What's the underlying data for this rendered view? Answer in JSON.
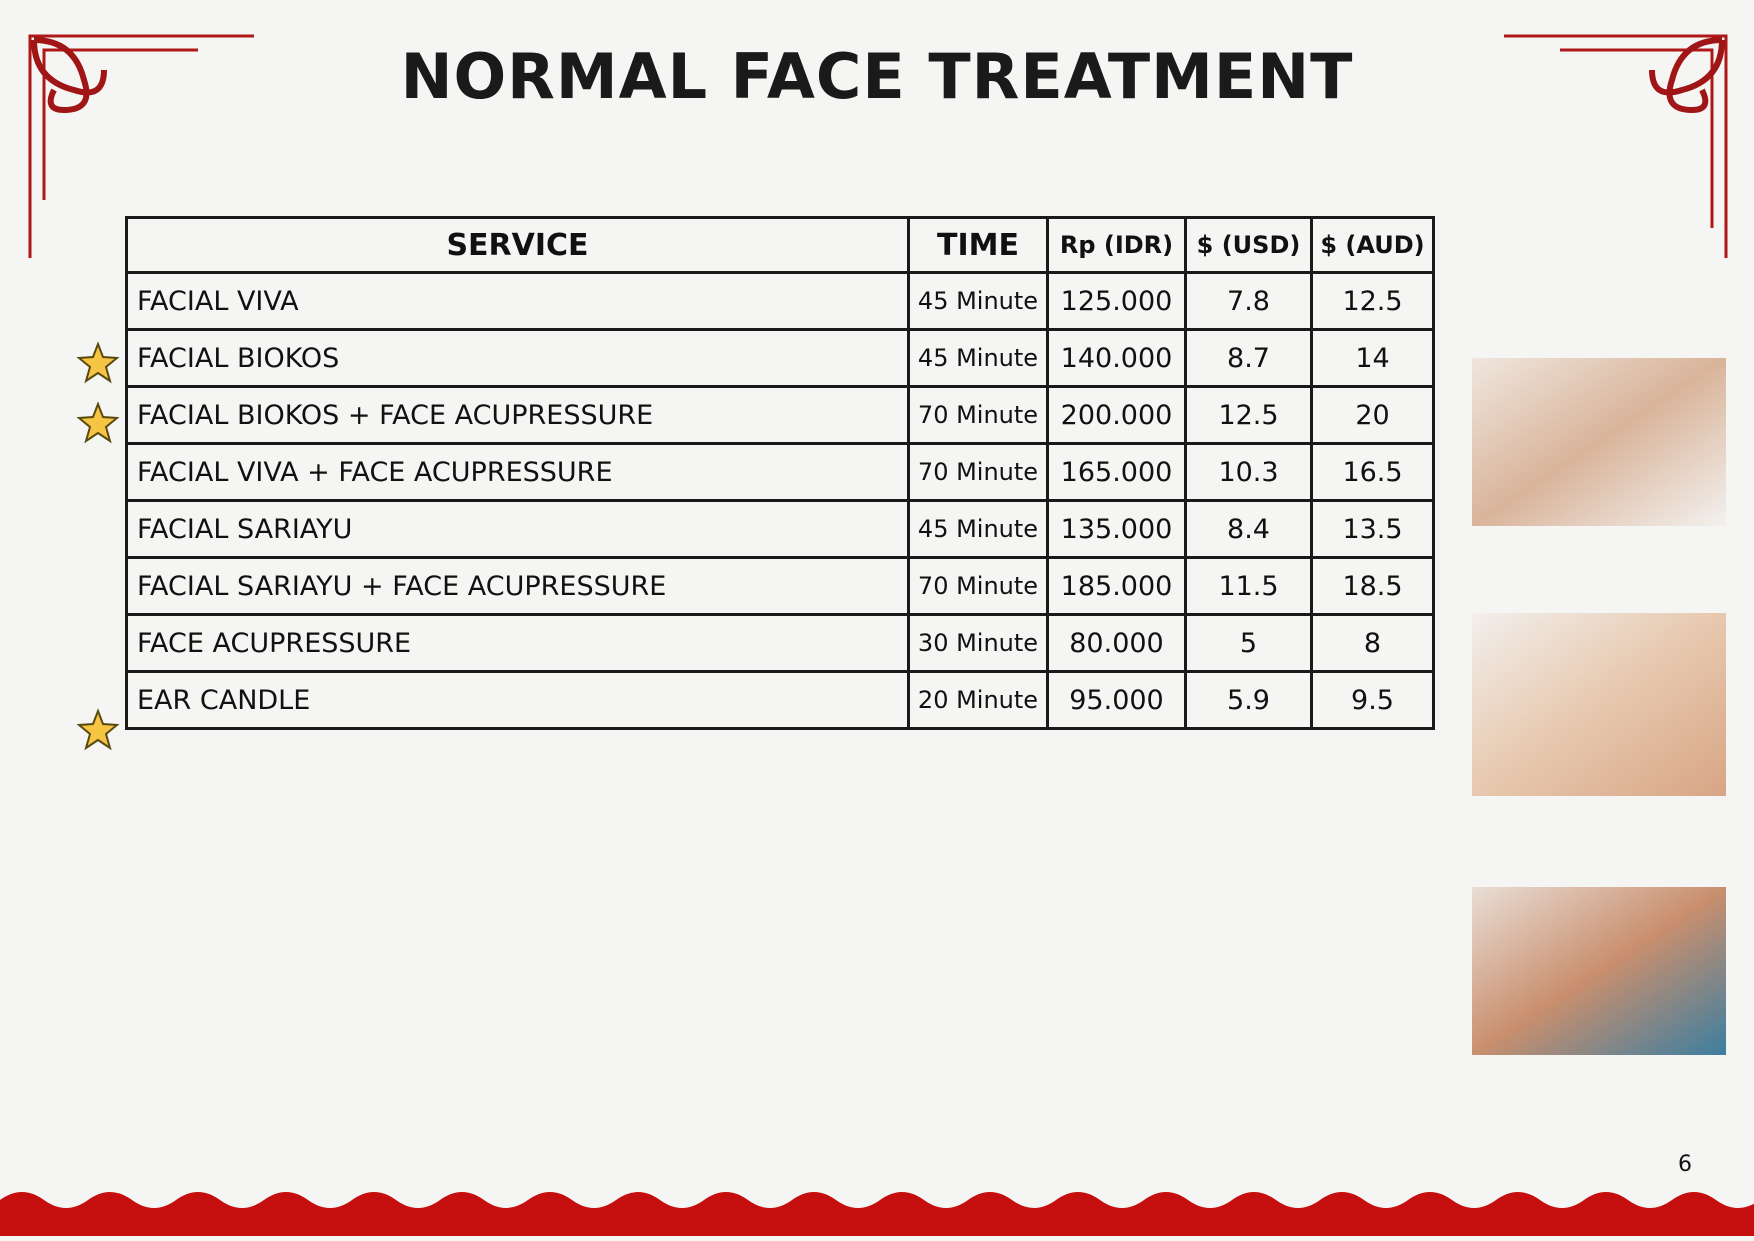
{
  "header": {
    "title": "NORMAL FACE TREATMENT"
  },
  "table": {
    "columns": [
      "SERVICE",
      "TIME",
      "Rp (IDR)",
      "$ (USD)",
      "$ (AUD)"
    ],
    "rows": [
      [
        "FACIAL VIVA",
        "45 Minute",
        "125.000",
        "7.8",
        "12.5"
      ],
      [
        "FACIAL BIOKOS",
        "45 Minute",
        "140.000",
        "8.7",
        "14"
      ],
      [
        "FACIAL BIOKOS + FACE ACUPRESSURE",
        "70 Minute",
        "200.000",
        "12.5",
        "20"
      ],
      [
        "FACIAL VIVA + FACE ACUPRESSURE",
        "70 Minute",
        "165.000",
        "10.3",
        "16.5"
      ],
      [
        "FACIAL SARIAYU",
        "45 Minute",
        "135.000",
        "8.4",
        "13.5"
      ],
      [
        "FACIAL SARIAYU + FACE ACUPRESSURE",
        "70 Minute",
        "185.000",
        "11.5",
        "18.5"
      ],
      [
        "FACE ACUPRESSURE",
        "30 Minute",
        "80.000",
        "5",
        "8"
      ],
      [
        "EAR CANDLE",
        "20 Minute",
        "95.000",
        "5.9",
        "9.5"
      ]
    ]
  },
  "footer": {
    "page_number": "6"
  }
}
